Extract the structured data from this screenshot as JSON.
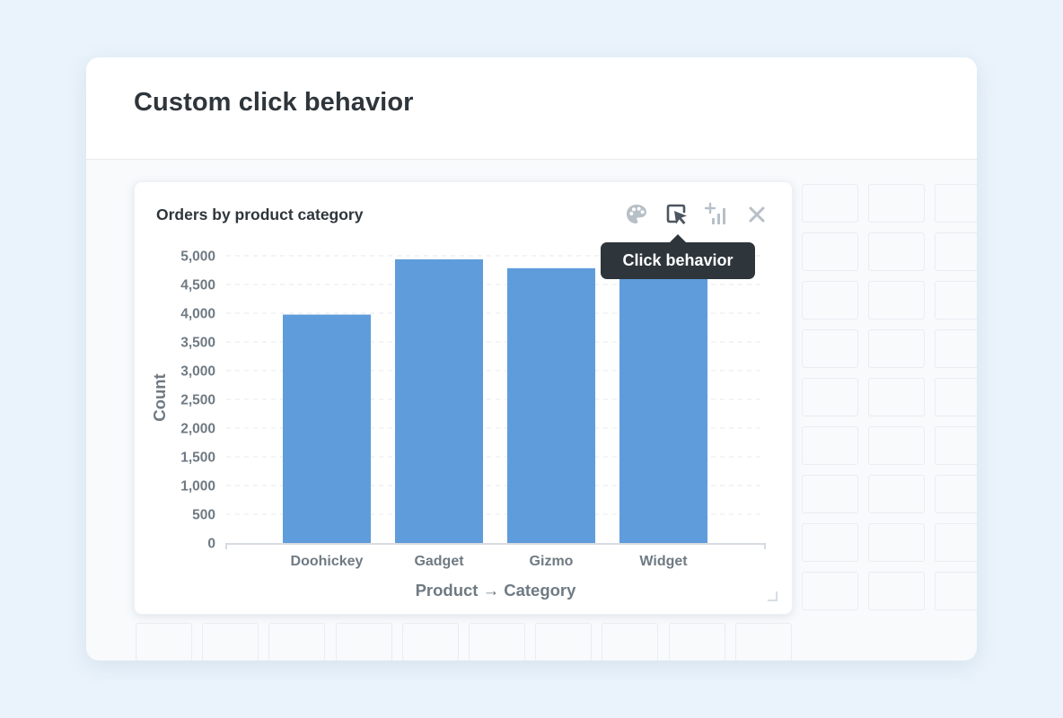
{
  "header": {
    "title": "Custom click behavior"
  },
  "card": {
    "title": "Orders by product category",
    "actions": [
      {
        "name": "palette-icon",
        "tooltip": ""
      },
      {
        "name": "click-behavior-icon",
        "tooltip": "Click behavior"
      },
      {
        "name": "add-series-icon",
        "tooltip": ""
      },
      {
        "name": "close-icon",
        "tooltip": ""
      }
    ]
  },
  "tooltip": {
    "text": "Click behavior"
  },
  "colors": {
    "bar": "#5f9cdc",
    "text": "#2e353b",
    "axis_text": "#6f7a83",
    "icon": "#b7bfc7",
    "icon_active": "#4c5660"
  },
  "chart_data": {
    "type": "bar",
    "categories": [
      "Doohickey",
      "Gadget",
      "Gizmo",
      "Widget"
    ],
    "series": [
      {
        "values": [
          3976,
          4939,
          4784,
          5061
        ]
      }
    ],
    "title": "",
    "xlabel": "Product → Category",
    "ylabel": "Count",
    "ylim": [
      0,
      5000
    ],
    "yticks": [
      0,
      500,
      1000,
      1500,
      2000,
      2500,
      3000,
      3500,
      4000,
      4500,
      5000
    ],
    "ytick_labels": [
      "0",
      "500",
      "1,000",
      "1,500",
      "2,000",
      "2,500",
      "3,000",
      "3,500",
      "4,000",
      "4,500",
      "5,000"
    ],
    "grid": true,
    "legend": "none"
  }
}
